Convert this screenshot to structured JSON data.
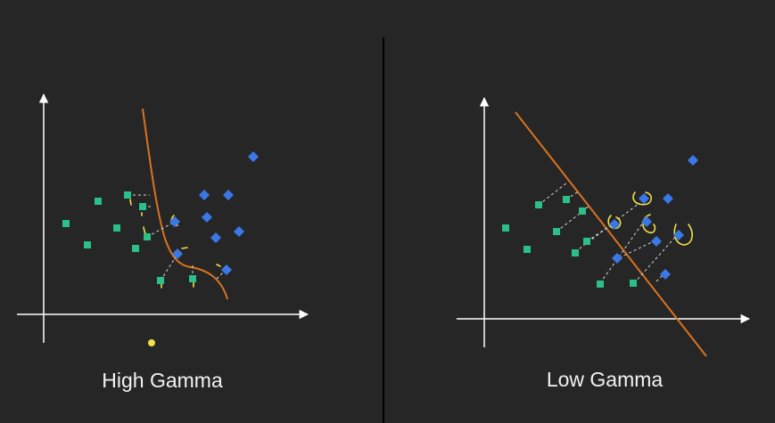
{
  "left_panel": {
    "caption": "High Gamma",
    "boundary": "curved",
    "highlight_dot_color": "#f2e04a"
  },
  "right_panel": {
    "caption": "Low Gamma",
    "boundary": "straight"
  },
  "colors": {
    "background": "#262626",
    "axis": "#ffffff",
    "divider": "#000000",
    "class_a": "#2bbf8a",
    "class_b": "#3a78e8",
    "boundary": "#d9731f",
    "annotation": "#f2e04a",
    "projection": "#d8d8d8"
  },
  "marker_icons": {
    "class_a": "green-square-marker",
    "class_b": "blue-diamond-marker"
  }
}
